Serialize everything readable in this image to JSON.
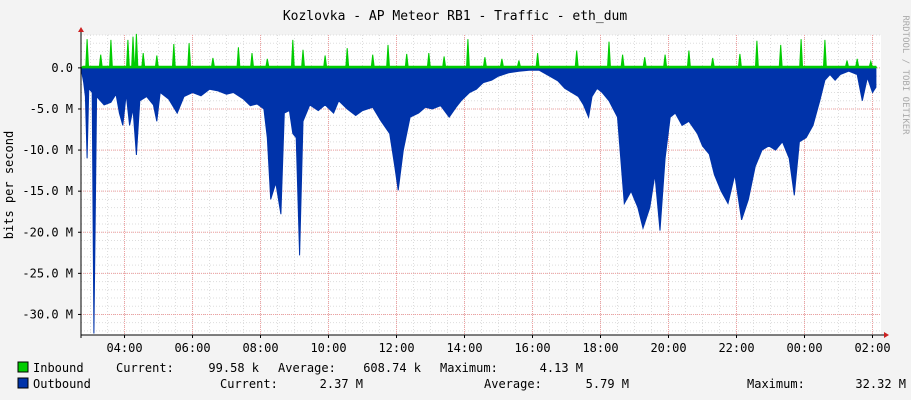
{
  "colors": {
    "inbound": "#00cc00",
    "outbound": "#0033aa",
    "canvas": "#f3f3f3",
    "plot_bg": "#ffffff",
    "grid_minor": "#dddddd",
    "grid_major": "#f0a0a0",
    "axis": "#000000",
    "arrow": "#cc2222"
  },
  "side_text": "RRDTOOL / TOBI OETIKER",
  "legend": {
    "inbound": {
      "label": "Inbound",
      "current_label": "Current:",
      "current": "99.58 k",
      "average_label": "Average:",
      "average": "608.74 k",
      "maximum_label": "Maximum:",
      "maximum": "4.13 M"
    },
    "outbound": {
      "label": "Outbound",
      "current_label": "Current:",
      "current": "2.37 M",
      "average_label": "Average:",
      "average": "5.79 M",
      "maximum_label": "Maximum:",
      "maximum": "32.32 M"
    }
  },
  "chart_data": {
    "type": "area",
    "title": "Kozlovka - AP Meteor RB1 - Traffic - eth_dum",
    "ylabel": "bits per second",
    "xlabel": "",
    "ylim": [
      -32.5,
      4.0
    ],
    "xlim_hours": [
      2.72,
      26.25
    ],
    "y_ticks": [
      0,
      -5,
      -10,
      -15,
      -20,
      -25,
      -30
    ],
    "y_tick_labels": [
      "0.0",
      "-5.0 M",
      "-10.0 M",
      "-15.0 M",
      "-20.0 M",
      "-25.0 M",
      "-30.0 M"
    ],
    "x_ticks": [
      4,
      6,
      8,
      10,
      12,
      14,
      16,
      18,
      20,
      22,
      24,
      26
    ],
    "x_tick_labels": [
      "04:00",
      "06:00",
      "08:00",
      "10:00",
      "12:00",
      "14:00",
      "16:00",
      "18:00",
      "20:00",
      "22:00",
      "00:00",
      "02:00"
    ],
    "grid": true,
    "units": "M",
    "series": [
      {
        "name": "Inbound",
        "color": "#00cc00",
        "baseline": 0.2,
        "peaks": [
          {
            "x": 2.9,
            "v": 3.5
          },
          {
            "x": 3.3,
            "v": 1.6
          },
          {
            "x": 3.6,
            "v": 3.4
          },
          {
            "x": 4.1,
            "v": 3.4
          },
          {
            "x": 4.25,
            "v": 3.8
          },
          {
            "x": 4.35,
            "v": 4.13
          },
          {
            "x": 4.55,
            "v": 1.8
          },
          {
            "x": 4.95,
            "v": 1.5
          },
          {
            "x": 5.45,
            "v": 2.9
          },
          {
            "x": 5.9,
            "v": 3.0
          },
          {
            "x": 6.6,
            "v": 1.2
          },
          {
            "x": 7.35,
            "v": 2.5
          },
          {
            "x": 7.75,
            "v": 1.8
          },
          {
            "x": 8.2,
            "v": 1.1
          },
          {
            "x": 8.95,
            "v": 3.4
          },
          {
            "x": 9.25,
            "v": 2.2
          },
          {
            "x": 9.9,
            "v": 1.5
          },
          {
            "x": 10.55,
            "v": 2.4
          },
          {
            "x": 11.3,
            "v": 1.6
          },
          {
            "x": 11.75,
            "v": 2.8
          },
          {
            "x": 12.3,
            "v": 1.7
          },
          {
            "x": 12.95,
            "v": 1.8
          },
          {
            "x": 13.4,
            "v": 1.4
          },
          {
            "x": 14.1,
            "v": 3.5
          },
          {
            "x": 14.6,
            "v": 1.3
          },
          {
            "x": 15.1,
            "v": 1.1
          },
          {
            "x": 15.6,
            "v": 0.9
          },
          {
            "x": 16.15,
            "v": 1.8
          },
          {
            "x": 17.3,
            "v": 2.1
          },
          {
            "x": 18.25,
            "v": 3.2
          },
          {
            "x": 18.65,
            "v": 1.6
          },
          {
            "x": 19.3,
            "v": 1.3
          },
          {
            "x": 19.9,
            "v": 1.6
          },
          {
            "x": 20.6,
            "v": 2.1
          },
          {
            "x": 21.3,
            "v": 1.2
          },
          {
            "x": 22.1,
            "v": 1.7
          },
          {
            "x": 22.6,
            "v": 3.3
          },
          {
            "x": 23.3,
            "v": 2.8
          },
          {
            "x": 23.9,
            "v": 3.5
          },
          {
            "x": 24.6,
            "v": 3.4
          },
          {
            "x": 25.25,
            "v": 0.9
          },
          {
            "x": 25.55,
            "v": 1.1
          },
          {
            "x": 25.95,
            "v": 0.8
          }
        ]
      },
      {
        "name": "Outbound",
        "color": "#0033aa",
        "profile": [
          [
            2.72,
            0
          ],
          [
            2.8,
            -1.8
          ],
          [
            2.85,
            -3.5
          ],
          [
            2.9,
            -11.0
          ],
          [
            2.95,
            -2.5
          ],
          [
            3.05,
            -3.0
          ],
          [
            3.1,
            -32.32
          ],
          [
            3.18,
            -3.5
          ],
          [
            3.4,
            -4.5
          ],
          [
            3.6,
            -4.2
          ],
          [
            3.75,
            -3.2
          ],
          [
            3.85,
            -5.5
          ],
          [
            3.95,
            -7.0
          ],
          [
            4.05,
            -3.2
          ],
          [
            4.15,
            -7.0
          ],
          [
            4.25,
            -5.0
          ],
          [
            4.35,
            -10.6
          ],
          [
            4.45,
            -4.0
          ],
          [
            4.65,
            -3.5
          ],
          [
            4.85,
            -4.5
          ],
          [
            4.95,
            -6.5
          ],
          [
            5.05,
            -3.0
          ],
          [
            5.3,
            -3.8
          ],
          [
            5.55,
            -5.5
          ],
          [
            5.75,
            -3.5
          ],
          [
            6.0,
            -3.0
          ],
          [
            6.25,
            -3.4
          ],
          [
            6.5,
            -2.6
          ],
          [
            6.75,
            -2.8
          ],
          [
            7.0,
            -3.2
          ],
          [
            7.2,
            -3.0
          ],
          [
            7.5,
            -3.8
          ],
          [
            7.7,
            -4.6
          ],
          [
            7.9,
            -4.4
          ],
          [
            8.1,
            -5.0
          ],
          [
            8.2,
            -8.5
          ],
          [
            8.3,
            -16.0
          ],
          [
            8.45,
            -14.0
          ],
          [
            8.6,
            -17.8
          ],
          [
            8.7,
            -5.5
          ],
          [
            8.85,
            -5.2
          ],
          [
            8.95,
            -8.0
          ],
          [
            9.05,
            -8.5
          ],
          [
            9.15,
            -22.8
          ],
          [
            9.25,
            -6.5
          ],
          [
            9.45,
            -4.5
          ],
          [
            9.7,
            -5.2
          ],
          [
            9.9,
            -4.5
          ],
          [
            10.15,
            -5.5
          ],
          [
            10.3,
            -4.0
          ],
          [
            10.55,
            -5.0
          ],
          [
            10.8,
            -5.8
          ],
          [
            11.0,
            -5.2
          ],
          [
            11.3,
            -4.8
          ],
          [
            11.55,
            -6.5
          ],
          [
            11.8,
            -8.0
          ],
          [
            11.95,
            -12.0
          ],
          [
            12.05,
            -14.9
          ],
          [
            12.2,
            -10.0
          ],
          [
            12.4,
            -6.0
          ],
          [
            12.65,
            -5.5
          ],
          [
            12.85,
            -4.8
          ],
          [
            13.05,
            -5.0
          ],
          [
            13.3,
            -4.6
          ],
          [
            13.55,
            -6.0
          ],
          [
            13.75,
            -4.8
          ],
          [
            13.9,
            -4.0
          ],
          [
            14.15,
            -3.0
          ],
          [
            14.35,
            -2.6
          ],
          [
            14.55,
            -1.8
          ],
          [
            14.8,
            -1.5
          ],
          [
            15.0,
            -1.0
          ],
          [
            15.3,
            -0.6
          ],
          [
            15.6,
            -0.4
          ],
          [
            15.9,
            -0.3
          ],
          [
            16.2,
            -0.3
          ],
          [
            16.5,
            -1.0
          ],
          [
            16.75,
            -1.6
          ],
          [
            16.95,
            -2.5
          ],
          [
            17.15,
            -3.0
          ],
          [
            17.35,
            -3.5
          ],
          [
            17.5,
            -4.5
          ],
          [
            17.65,
            -6.0
          ],
          [
            17.75,
            -3.5
          ],
          [
            17.9,
            -2.5
          ],
          [
            18.05,
            -3.0
          ],
          [
            18.25,
            -4.0
          ],
          [
            18.5,
            -6.0
          ],
          [
            18.7,
            -16.5
          ],
          [
            18.9,
            -15.0
          ],
          [
            19.1,
            -17.0
          ],
          [
            19.25,
            -19.5
          ],
          [
            19.45,
            -17.0
          ],
          [
            19.6,
            -13.0
          ],
          [
            19.75,
            -19.8
          ],
          [
            19.9,
            -11.0
          ],
          [
            20.05,
            -6.0
          ],
          [
            20.2,
            -5.5
          ],
          [
            20.4,
            -7.0
          ],
          [
            20.6,
            -6.5
          ],
          [
            20.85,
            -8.0
          ],
          [
            21.0,
            -9.5
          ],
          [
            21.2,
            -10.5
          ],
          [
            21.35,
            -13.0
          ],
          [
            21.55,
            -15.0
          ],
          [
            21.75,
            -16.5
          ],
          [
            21.95,
            -13.0
          ],
          [
            22.15,
            -18.5
          ],
          [
            22.35,
            -16.0
          ],
          [
            22.55,
            -12.0
          ],
          [
            22.75,
            -10.0
          ],
          [
            22.95,
            -9.5
          ],
          [
            23.15,
            -10.0
          ],
          [
            23.35,
            -9.0
          ],
          [
            23.55,
            -11.0
          ],
          [
            23.7,
            -15.5
          ],
          [
            23.85,
            -9.0
          ],
          [
            24.05,
            -8.5
          ],
          [
            24.25,
            -7.0
          ],
          [
            24.45,
            -4.0
          ],
          [
            24.6,
            -1.5
          ],
          [
            24.75,
            -0.8
          ],
          [
            24.9,
            -1.5
          ],
          [
            25.05,
            -0.8
          ],
          [
            25.3,
            -0.4
          ],
          [
            25.55,
            -0.8
          ],
          [
            25.7,
            -4.0
          ],
          [
            25.85,
            -1.2
          ],
          [
            26.0,
            -3.0
          ],
          [
            26.1,
            -2.37
          ]
        ]
      }
    ]
  }
}
